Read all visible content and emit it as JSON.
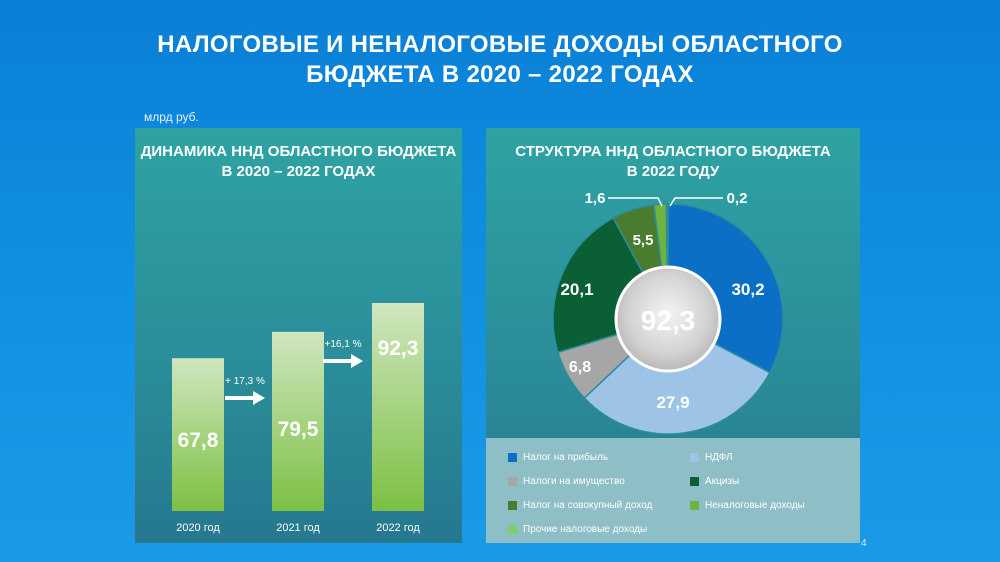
{
  "title": {
    "line1": "НАЛОГОВЫЕ И НЕНАЛОГОВЫЕ ДОХОДЫ ОБЛАСТНОГО",
    "line2": "БЮДЖЕТА В 2020 – 2022 ГОДАХ"
  },
  "unit_label": "млрд руб.",
  "page_number": "4",
  "colors": {
    "background": "#0f8fe0",
    "panel": "#2b8e9a",
    "bar_top": "#cfe6bf",
    "bar_bottom": "#7cc043"
  },
  "chart_data": [
    {
      "type": "bar",
      "title_line1": "ДИНАМИКА ННД ОБЛАСТНОГО БЮДЖЕТА",
      "title_line2": "В 2020 – 2022 ГОДАХ",
      "categories": [
        "2020 год",
        "2021 год",
        "2022 год"
      ],
      "values": [
        67.8,
        79.5,
        92.3
      ],
      "value_labels": [
        "67,8",
        "79,5",
        "92,3"
      ],
      "growth_annotations": [
        "+ 17,3 %",
        "+16,1 %"
      ],
      "ylim": [
        0,
        100
      ],
      "grid": false
    },
    {
      "type": "pie",
      "title_line1": "СТРУКТУРА ННД ОБЛАСТНОГО БЮДЖЕТА",
      "title_line2": "В 2022 ГОДУ",
      "total": 92.3,
      "total_label": "92,3",
      "slices": [
        {
          "name": "Налог на прибыль",
          "value": 30.2,
          "label": "30,2",
          "color": "#0b6fc5"
        },
        {
          "name": "НДФЛ",
          "value": 27.9,
          "label": "27,9",
          "color": "#9dc3e6"
        },
        {
          "name": "Налоги на имущество",
          "value": 6.8,
          "label": "6,8",
          "color": "#a6a6a6"
        },
        {
          "name": "Акцизы",
          "value": 20.1,
          "label": "20,1",
          "color": "#0a5f35"
        },
        {
          "name": "Налог на совокупный доход",
          "value": 5.5,
          "label": "5,5",
          "color": "#4a7c2f"
        },
        {
          "name": "Неналоговые доходы",
          "value": 1.6,
          "label": "1,6",
          "color": "#6fb33f"
        },
        {
          "name": "Прочие налоговые доходы",
          "value": 0.2,
          "label": "0,2",
          "color": "#7ccf6b"
        }
      ],
      "legend_position": "bottom"
    }
  ]
}
